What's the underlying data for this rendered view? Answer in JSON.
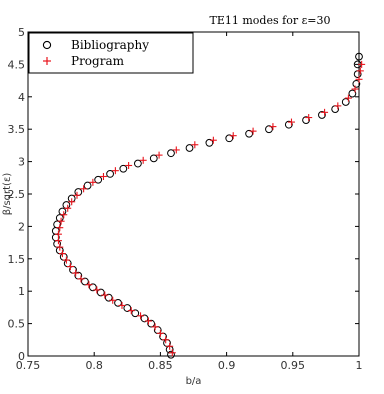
{
  "chart_data": {
    "type": "scatter",
    "title": "TE11 modes for ε=30",
    "xlabel": "b/a",
    "ylabel": "β/sqrt(ε)",
    "xlim": [
      0.75,
      1.0
    ],
    "ylim": [
      0,
      5
    ],
    "x_ticks": [
      "0.75",
      "0.8",
      "0.85",
      "0.9",
      "0.95",
      "1"
    ],
    "y_ticks": [
      "0",
      "0.5",
      "1",
      "1.5",
      "2",
      "2.5",
      "3",
      "3.5",
      "4",
      "4.5",
      "5"
    ],
    "grid": false,
    "legend_position": "top-left",
    "colors": {
      "bibliography": "#000000",
      "program": "#e8141c"
    },
    "series": [
      {
        "name": "Bibliography",
        "marker": "circle",
        "points": [
          [
            0.858,
            0.02
          ],
          [
            0.857,
            0.1
          ],
          [
            0.855,
            0.2
          ],
          [
            0.852,
            0.3
          ],
          [
            0.848,
            0.4
          ],
          [
            0.843,
            0.5
          ],
          [
            0.838,
            0.58
          ],
          [
            0.831,
            0.66
          ],
          [
            0.825,
            0.74
          ],
          [
            0.818,
            0.82
          ],
          [
            0.811,
            0.9
          ],
          [
            0.805,
            0.98
          ],
          [
            0.799,
            1.06
          ],
          [
            0.793,
            1.15
          ],
          [
            0.788,
            1.24
          ],
          [
            0.784,
            1.33
          ],
          [
            0.78,
            1.43
          ],
          [
            0.777,
            1.53
          ],
          [
            0.774,
            1.63
          ],
          [
            0.772,
            1.73
          ],
          [
            0.771,
            1.83
          ],
          [
            0.771,
            1.93
          ],
          [
            0.772,
            2.03
          ],
          [
            0.774,
            2.13
          ],
          [
            0.776,
            2.23
          ],
          [
            0.779,
            2.33
          ],
          [
            0.783,
            2.43
          ],
          [
            0.788,
            2.53
          ],
          [
            0.795,
            2.63
          ],
          [
            0.803,
            2.72
          ],
          [
            0.812,
            2.81
          ],
          [
            0.822,
            2.89
          ],
          [
            0.833,
            2.97
          ],
          [
            0.845,
            3.05
          ],
          [
            0.858,
            3.13
          ],
          [
            0.872,
            3.21
          ],
          [
            0.887,
            3.29
          ],
          [
            0.902,
            3.36
          ],
          [
            0.917,
            3.43
          ],
          [
            0.932,
            3.5
          ],
          [
            0.947,
            3.57
          ],
          [
            0.96,
            3.64
          ],
          [
            0.972,
            3.72
          ],
          [
            0.982,
            3.81
          ],
          [
            0.99,
            3.92
          ],
          [
            0.995,
            4.05
          ],
          [
            0.998,
            4.2
          ],
          [
            0.999,
            4.35
          ],
          [
            0.999,
            4.5
          ],
          [
            1.0,
            4.62
          ]
        ]
      },
      {
        "name": "Program",
        "marker": "plus",
        "points": [
          [
            0.859,
            0.05
          ],
          [
            0.857,
            0.15
          ],
          [
            0.854,
            0.25
          ],
          [
            0.85,
            0.35
          ],
          [
            0.846,
            0.45
          ],
          [
            0.841,
            0.54
          ],
          [
            0.835,
            0.62
          ],
          [
            0.828,
            0.7
          ],
          [
            0.821,
            0.78
          ],
          [
            0.814,
            0.86
          ],
          [
            0.808,
            0.94
          ],
          [
            0.802,
            1.02
          ],
          [
            0.796,
            1.1
          ],
          [
            0.79,
            1.19
          ],
          [
            0.786,
            1.28
          ],
          [
            0.782,
            1.38
          ],
          [
            0.779,
            1.48
          ],
          [
            0.776,
            1.58
          ],
          [
            0.774,
            1.68
          ],
          [
            0.773,
            1.78
          ],
          [
            0.773,
            1.88
          ],
          [
            0.774,
            1.98
          ],
          [
            0.775,
            2.08
          ],
          [
            0.777,
            2.18
          ],
          [
            0.78,
            2.28
          ],
          [
            0.783,
            2.38
          ],
          [
            0.787,
            2.48
          ],
          [
            0.792,
            2.58
          ],
          [
            0.799,
            2.68
          ],
          [
            0.807,
            2.77
          ],
          [
            0.816,
            2.86
          ],
          [
            0.826,
            2.94
          ],
          [
            0.837,
            3.02
          ],
          [
            0.849,
            3.1
          ],
          [
            0.862,
            3.18
          ],
          [
            0.876,
            3.26
          ],
          [
            0.89,
            3.33
          ],
          [
            0.905,
            3.4
          ],
          [
            0.92,
            3.47
          ],
          [
            0.935,
            3.54
          ],
          [
            0.949,
            3.61
          ],
          [
            0.962,
            3.68
          ],
          [
            0.974,
            3.76
          ],
          [
            0.984,
            3.86
          ],
          [
            0.992,
            3.98
          ],
          [
            0.997,
            4.12
          ],
          [
            1.0,
            4.27
          ],
          [
            1.001,
            4.4
          ],
          [
            1.002,
            4.5
          ]
        ]
      }
    ]
  }
}
